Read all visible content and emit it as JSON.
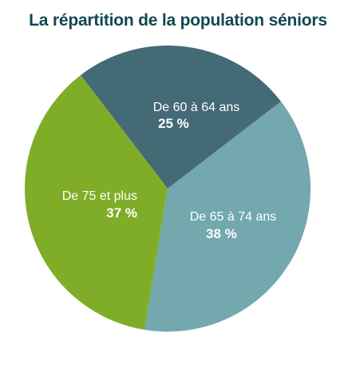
{
  "chart_data": {
    "type": "pie",
    "title": "La répartition de la population séniors",
    "title_color": "#124852",
    "slices": [
      {
        "label": "De 60 à 64 ans",
        "value": 25,
        "value_label": "25 %",
        "color": "#446a76"
      },
      {
        "label": "De 65 à 74 ans",
        "value": 38,
        "value_label": "38 %",
        "color": "#72a8ae"
      },
      {
        "label": "De 75 et plus",
        "value": 37,
        "value_label": "37 %",
        "color": "#80ad27"
      }
    ]
  }
}
